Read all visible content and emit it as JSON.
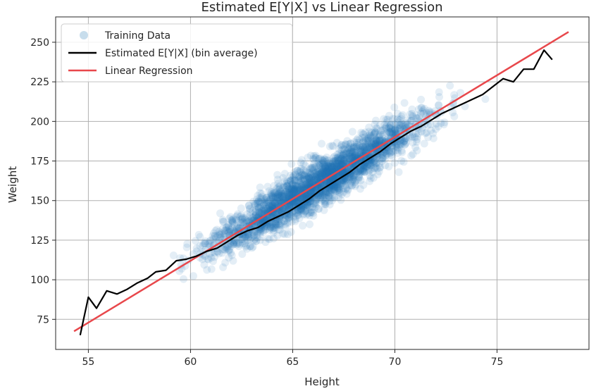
{
  "chart_data": {
    "type": "scatter",
    "title": "Estimated E[Y|X] vs Linear Regression",
    "xlabel": "Height",
    "ylabel": "Weight",
    "xlim": [
      53.4,
      79.5
    ],
    "ylim": [
      56,
      266
    ],
    "xticks": [
      55,
      60,
      65,
      70,
      75
    ],
    "yticks": [
      75,
      100,
      125,
      150,
      175,
      200,
      225,
      250
    ],
    "grid": true,
    "legend_position": "top-left",
    "legend": [
      "Training Data",
      "Estimated E[Y|X] (bin average)",
      "Linear Regression"
    ],
    "series": [
      {
        "name": "Training Data",
        "kind": "scatter",
        "color": "#1f77b4",
        "alpha": 0.12,
        "trend": {
          "x_min": 54.3,
          "x_max": 78.5,
          "slope": 7.8,
          "intercept": -356,
          "spread": 10.5,
          "count": 2600
        }
      },
      {
        "name": "Estimated E[Y|X] (bin average)",
        "kind": "line",
        "color": "#000000",
        "points": [
          [
            54.6,
            65
          ],
          [
            55.0,
            89
          ],
          [
            55.4,
            82
          ],
          [
            55.9,
            93
          ],
          [
            56.4,
            91
          ],
          [
            56.9,
            94
          ],
          [
            57.4,
            98
          ],
          [
            57.9,
            101
          ],
          [
            58.3,
            105
          ],
          [
            58.8,
            106
          ],
          [
            59.3,
            112
          ],
          [
            59.8,
            113
          ],
          [
            60.3,
            115
          ],
          [
            60.8,
            118
          ],
          [
            61.3,
            120
          ],
          [
            61.8,
            124
          ],
          [
            62.3,
            128
          ],
          [
            62.8,
            131
          ],
          [
            63.3,
            133
          ],
          [
            63.8,
            137
          ],
          [
            64.3,
            140
          ],
          [
            64.8,
            143
          ],
          [
            65.3,
            147
          ],
          [
            65.8,
            151
          ],
          [
            66.3,
            156
          ],
          [
            66.8,
            160
          ],
          [
            67.3,
            164
          ],
          [
            67.8,
            168
          ],
          [
            68.3,
            173
          ],
          [
            68.8,
            177
          ],
          [
            69.3,
            181
          ],
          [
            69.8,
            186
          ],
          [
            70.3,
            190
          ],
          [
            70.8,
            194
          ],
          [
            71.3,
            197
          ],
          [
            71.8,
            201
          ],
          [
            72.3,
            205
          ],
          [
            72.8,
            208
          ],
          [
            73.3,
            211
          ],
          [
            73.8,
            214
          ],
          [
            74.3,
            217
          ],
          [
            74.8,
            222
          ],
          [
            75.3,
            227
          ],
          [
            75.8,
            225
          ],
          [
            76.3,
            233
          ],
          [
            76.8,
            233
          ],
          [
            77.3,
            245
          ],
          [
            77.7,
            239
          ]
        ]
      },
      {
        "name": "Linear Regression",
        "kind": "line",
        "color": "#e8474b",
        "points": [
          [
            54.3,
            67.5
          ],
          [
            78.5,
            256.5
          ]
        ]
      }
    ]
  }
}
